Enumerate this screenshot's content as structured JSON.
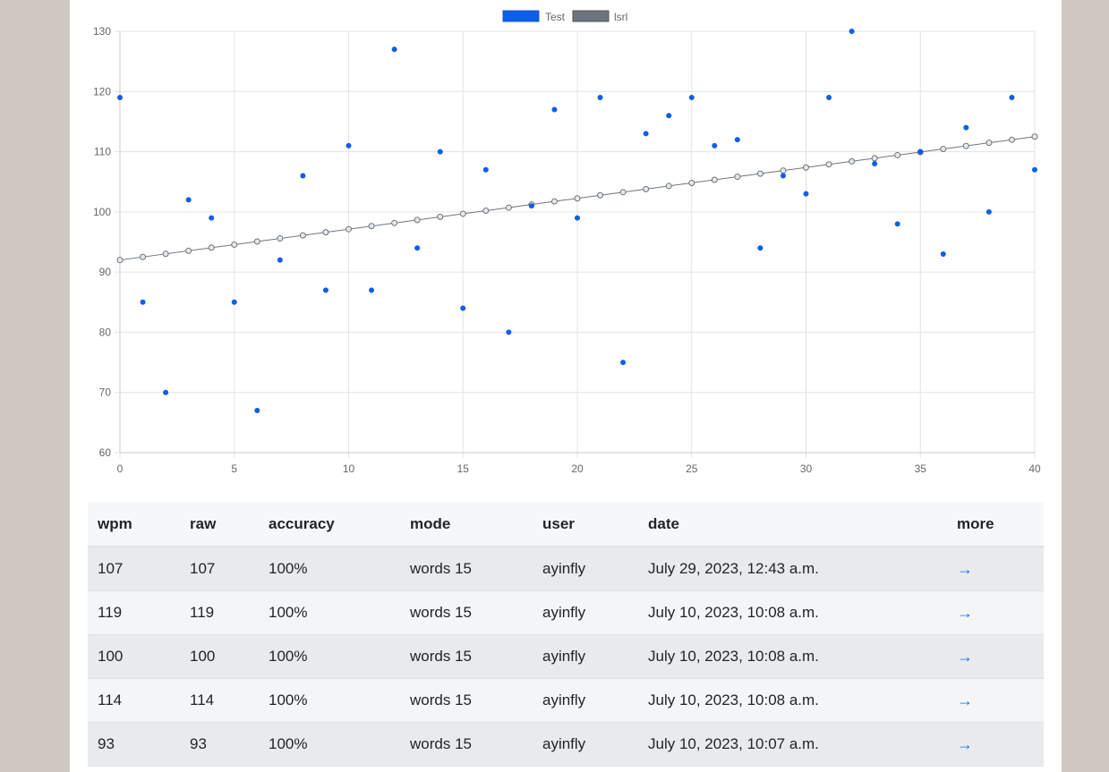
{
  "chart_data": {
    "type": "scatter",
    "series": [
      {
        "name": "Test",
        "color": "#0d5fe8",
        "x": [
          0,
          1,
          2,
          3,
          4,
          5,
          6,
          7,
          8,
          9,
          10,
          11,
          12,
          13,
          14,
          15,
          16,
          17,
          18,
          19,
          20,
          21,
          22,
          23,
          24,
          25,
          26,
          27,
          28,
          29,
          30,
          31,
          32,
          33,
          34,
          35,
          36,
          37,
          38,
          39,
          40
        ],
        "y": [
          119,
          85,
          70,
          102,
          99,
          85,
          67,
          92,
          106,
          87,
          111,
          87,
          127,
          94,
          110,
          84,
          107,
          80,
          101,
          117,
          99,
          119,
          75,
          113,
          116,
          119,
          111,
          112,
          94,
          106,
          103,
          119,
          130,
          108,
          98,
          110,
          93,
          114,
          100,
          119,
          107
        ]
      },
      {
        "name": "lsrl",
        "color": "#6c757d",
        "type": "line",
        "x": [
          0,
          40
        ],
        "y": [
          92.0,
          112.5
        ]
      }
    ],
    "xlim": [
      0,
      40
    ],
    "ylim": [
      60,
      130
    ],
    "xticks": [
      0,
      5,
      10,
      15,
      20,
      25,
      30,
      35,
      40
    ],
    "yticks": [
      60,
      70,
      80,
      90,
      100,
      110,
      120,
      130
    ],
    "grid": true,
    "legend": "top-center"
  },
  "table": {
    "headers": [
      "wpm",
      "raw",
      "accuracy",
      "mode",
      "user",
      "date",
      "more"
    ],
    "rows": [
      {
        "wpm": "107",
        "raw": "107",
        "accuracy": "100%",
        "mode": "words 15",
        "user": "ayinfly",
        "date": "July 29, 2023, 12:43 a.m.",
        "more": "→"
      },
      {
        "wpm": "119",
        "raw": "119",
        "accuracy": "100%",
        "mode": "words 15",
        "user": "ayinfly",
        "date": "July 10, 2023, 10:08 a.m.",
        "more": "→"
      },
      {
        "wpm": "100",
        "raw": "100",
        "accuracy": "100%",
        "mode": "words 15",
        "user": "ayinfly",
        "date": "July 10, 2023, 10:08 a.m.",
        "more": "→"
      },
      {
        "wpm": "114",
        "raw": "114",
        "accuracy": "100%",
        "mode": "words 15",
        "user": "ayinfly",
        "date": "July 10, 2023, 10:08 a.m.",
        "more": "→"
      },
      {
        "wpm": "93",
        "raw": "93",
        "accuracy": "100%",
        "mode": "words 15",
        "user": "ayinfly",
        "date": "July 10, 2023, 10:07 a.m.",
        "more": "→"
      }
    ]
  }
}
